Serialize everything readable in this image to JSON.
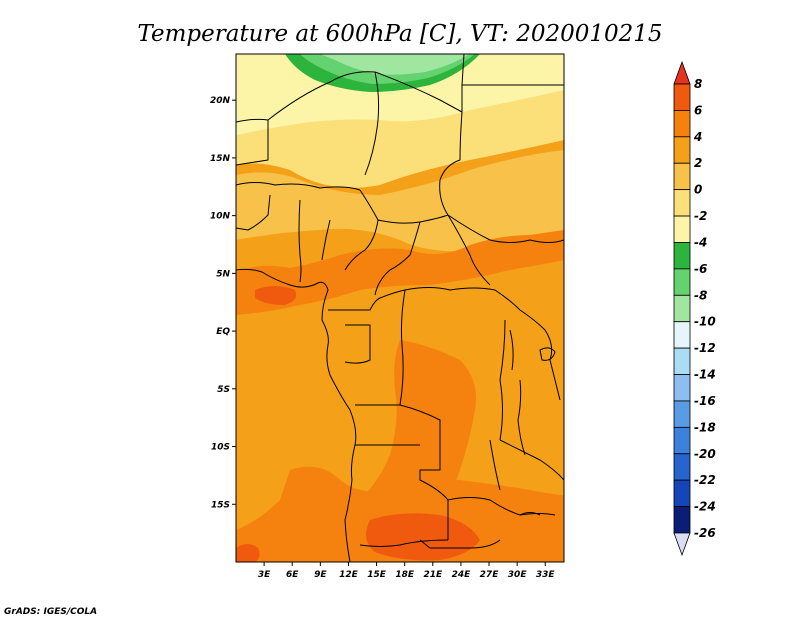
{
  "title": "Temperature at 600hPa [C], VT: 2020010215",
  "credit": "GrADS: IGES/COLA",
  "map": {
    "lat_ticks": [
      "20N",
      "15N",
      "10N",
      "5N",
      "EQ",
      "5S",
      "10S",
      "15S"
    ],
    "lon_ticks": [
      "3E",
      "6E",
      "9E",
      "12E",
      "15E",
      "18E",
      "21E",
      "24E",
      "27E",
      "30E",
      "33E"
    ]
  },
  "colorbar": {
    "labels": [
      "8",
      "6",
      "4",
      "2",
      "0",
      "-2",
      "-4",
      "-6",
      "-8",
      "-10",
      "-12",
      "-14",
      "-16",
      "-18",
      "-20",
      "-22",
      "-24",
      "-26"
    ],
    "colors": [
      "#e6321e",
      "#f05a0f",
      "#f5820f",
      "#f5a019",
      "#f8c24a",
      "#fbe07a",
      "#fcf5a8",
      "#2db43c",
      "#64d26e",
      "#a0e6a0",
      "#e6f5fb",
      "#aadcf5",
      "#8cbef0",
      "#5a9be6",
      "#3c82dc",
      "#2864cd",
      "#1446b9",
      "#0a1e78",
      "#dcdcf5"
    ]
  },
  "chart_data": {
    "type": "heatmap",
    "title": "Temperature at 600hPa [C], VT: 2020010215",
    "variable": "Temperature",
    "level": "600hPa",
    "units": "C",
    "valid_time": "2020010215",
    "lon_range": [
      0,
      35
    ],
    "lat_range": [
      -20,
      24
    ],
    "lon_ticks": [
      "3E",
      "6E",
      "9E",
      "12E",
      "15E",
      "18E",
      "21E",
      "24E",
      "27E",
      "30E",
      "33E"
    ],
    "lat_ticks": [
      "20N",
      "15N",
      "10N",
      "5N",
      "EQ",
      "5S",
      "10S",
      "15S"
    ],
    "contour_levels": [
      8,
      6,
      4,
      2,
      0,
      -2,
      -4,
      -6,
      -8,
      -10,
      -12,
      -14,
      -16,
      -18,
      -20,
      -22,
      -24,
      -26
    ]
  }
}
